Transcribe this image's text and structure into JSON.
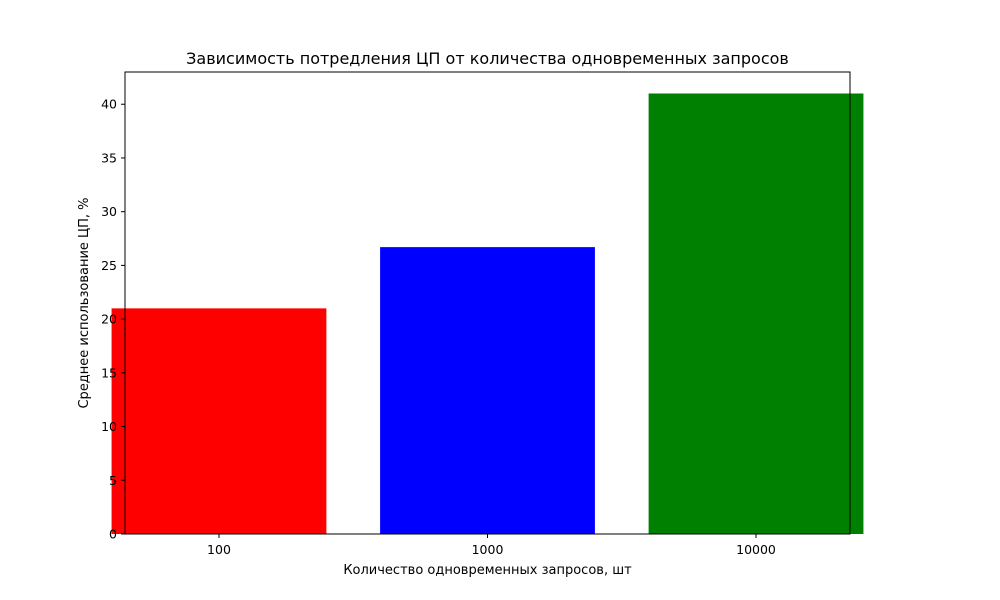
{
  "chart_data": {
    "type": "bar",
    "title": "Зависимость потредления ЦП от количества одновременных запросов",
    "xlabel": "Количество одновременных запросов, шт",
    "ylabel": "Среднее использование ЦП, %",
    "categories": [
      "100",
      "1000",
      "10000"
    ],
    "values": [
      21.0,
      26.7,
      41.0
    ],
    "colors": [
      "#ff0000",
      "#0000ff",
      "#008000"
    ],
    "ylim": [
      0,
      43
    ],
    "yticks": [
      0,
      5,
      10,
      15,
      20,
      25,
      30,
      35,
      40
    ],
    "grid": false,
    "legend": false
  }
}
